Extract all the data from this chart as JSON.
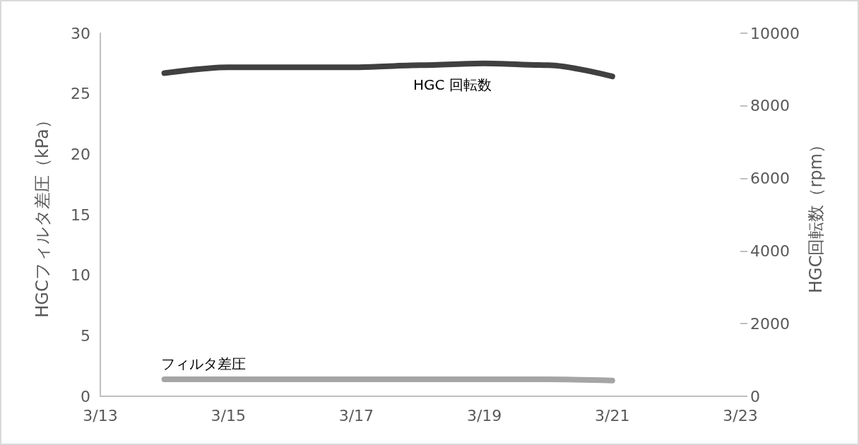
{
  "chart_data": {
    "type": "line",
    "ylabel": "HGCフィルタ差圧（kPa）",
    "y2label": "HGC回転数（rpm）",
    "x": [
      "--03-14",
      "--03-15",
      "--03-16",
      "--03-17",
      "--03-18",
      "--03-19",
      "--03-20",
      "--03-21"
    ],
    "xlim": [
      "--03-13",
      "--03-23"
    ],
    "xticks": [
      {
        "value": "--03-13",
        "label": "3/13"
      },
      {
        "value": "--03-15",
        "label": "3/15"
      },
      {
        "value": "--03-17",
        "label": "3/17"
      },
      {
        "value": "--03-19",
        "label": "3/19"
      },
      {
        "value": "--03-21",
        "label": "3/21"
      },
      {
        "value": "--03-23",
        "label": "3/23"
      }
    ],
    "ylim": [
      0,
      30
    ],
    "yticks": [
      0,
      5,
      10,
      15,
      20,
      25,
      30
    ],
    "y2lim": [
      0,
      10000
    ],
    "y2ticks": [
      0,
      2000,
      4000,
      6000,
      8000,
      10000
    ],
    "series": [
      {
        "name": "HGC 回転数",
        "color": "#404040",
        "axis": "y2",
        "values": [
          8900,
          9060,
          9060,
          9060,
          9120,
          9170,
          9120,
          8810
        ]
      },
      {
        "name": "フィルタ差圧",
        "color": "#a5a5a5",
        "values": [
          1.4,
          1.4,
          1.4,
          1.4,
          1.4,
          1.4,
          1.4,
          1.3
        ]
      }
    ],
    "grid": false,
    "legend": false,
    "line_style": "solid"
  }
}
